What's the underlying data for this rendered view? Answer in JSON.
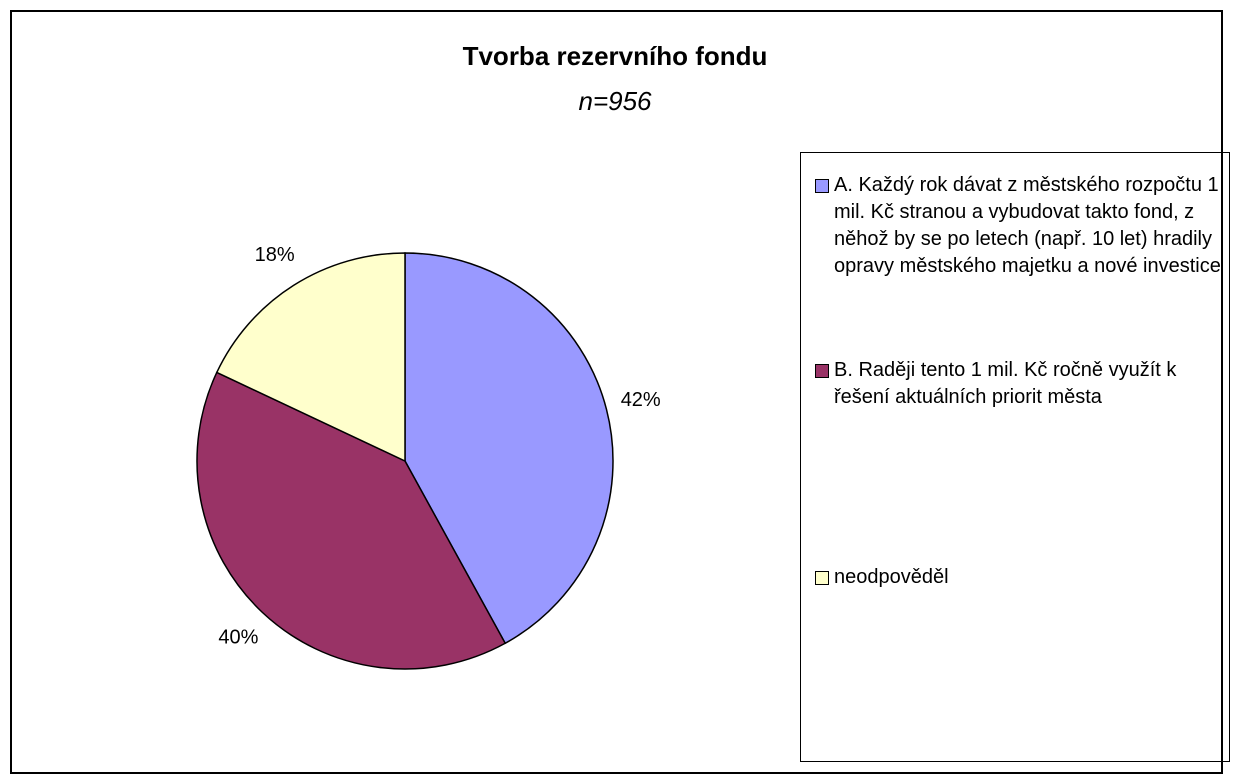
{
  "chart_data": {
    "type": "pie",
    "title": "Tvorba rezervního fondu",
    "subtitle": "n=956",
    "categories": [
      "A. Každý rok dávat z městského rozpočtu 1 mil. Kč stranou a vybudovat takto fond, z něhož by se po letech (např. 10 let) hradily opravy městského majetku a nové investice",
      "B. Raději tento 1 mil. Kč ročně využít k řešení aktuálních priorit města",
      "neodpověděl"
    ],
    "values": [
      42,
      40,
      18
    ],
    "value_labels": [
      "42%",
      "40%",
      "18%"
    ],
    "colors": [
      "#9999ff",
      "#993366",
      "#ffffcc"
    ],
    "legend": "right"
  }
}
